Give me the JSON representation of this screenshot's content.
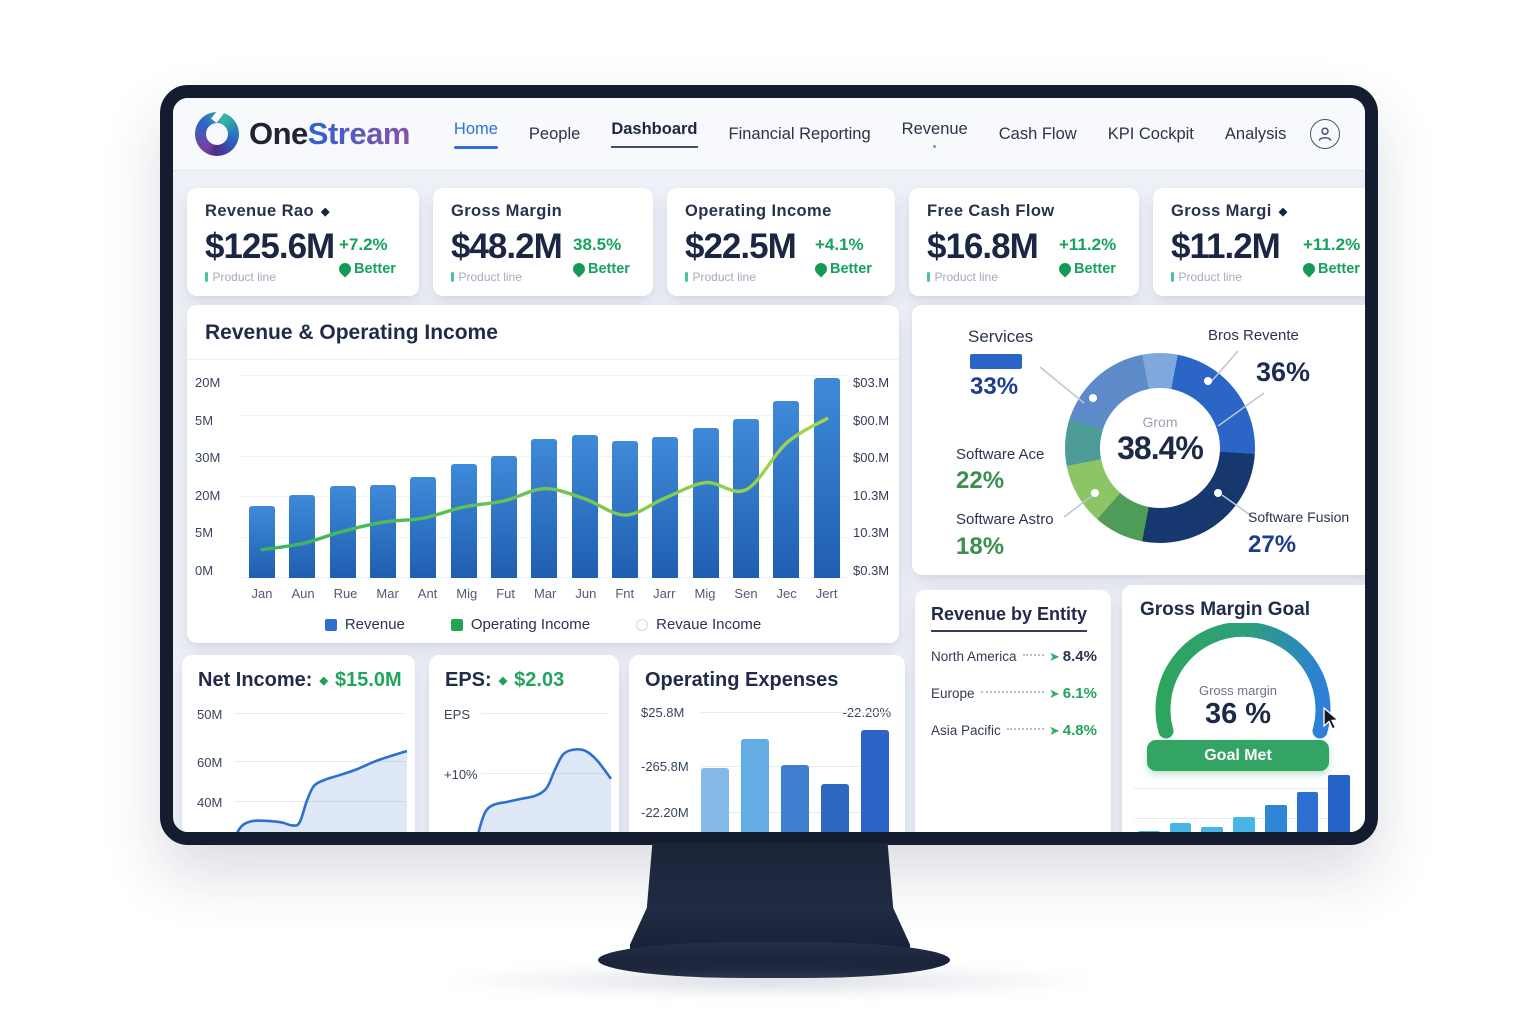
{
  "brand": {
    "part1": "One",
    "part2": "Stream"
  },
  "nav": {
    "items": [
      {
        "label": "Home",
        "style": "nav-home"
      },
      {
        "label": "People",
        "style": ""
      },
      {
        "label": "Dashboard",
        "style": "nav-dash"
      },
      {
        "label": "Financial Reporting",
        "style": ""
      },
      {
        "label": "Revenue",
        "style": "nav-dot"
      },
      {
        "label": "Cash Flow",
        "style": ""
      },
      {
        "label": "KPI Cockpit",
        "style": ""
      },
      {
        "label": "Analysis",
        "style": ""
      }
    ]
  },
  "kpi_cards": [
    {
      "title": "Revenue Rao",
      "has_diamond": true,
      "value": "$125.6M",
      "sub": "Product line",
      "delta": "+7.2%",
      "delta_note": "Better"
    },
    {
      "title": "Gross Margin",
      "has_diamond": false,
      "value": "$48.2M",
      "sub": "Product line",
      "delta": "38.5%",
      "delta_note": "Better"
    },
    {
      "title": "Operating Income",
      "has_diamond": false,
      "value": "$22.5M",
      "sub": "Product line",
      "delta": "+4.1%",
      "delta_note": "Better"
    },
    {
      "title": "Free Cash Flow",
      "has_diamond": false,
      "value": "$16.8M",
      "sub": "Product line",
      "delta": "+11.2%",
      "delta_note": "Better"
    },
    {
      "title": "Gross Margi",
      "has_diamond": true,
      "value": "$11.2M",
      "sub": "Product line",
      "delta": "+11.2%",
      "delta_note": "Better"
    }
  ],
  "chart_data": [
    {
      "type": "bar",
      "title": "Revenue & Operating Income",
      "categories": [
        "Jan",
        "Aun",
        "Rue",
        "Mar",
        "Ant",
        "Mig",
        "Fut",
        "Mar",
        "Jun",
        "Fnt",
        "Jarr",
        "Mig",
        "Sen",
        "Jec",
        "Jert"
      ],
      "series": [
        {
          "name": "Revenue",
          "type": "bar",
          "color": "#2e6fd0",
          "values": [
            7.1,
            8.2,
            9.1,
            9.2,
            10.0,
            11.2,
            12.0,
            13.7,
            14.1,
            13.5,
            13.9,
            14.8,
            15.7,
            17.4,
            19.7
          ]
        },
        {
          "name": "Operating Income",
          "type": "line",
          "color": "#3cb95c",
          "values": [
            2.8,
            3.4,
            4.6,
            5.5,
            5.9,
            7.0,
            7.6,
            8.8,
            7.8,
            6.2,
            7.9,
            9.4,
            8.7,
            13.3,
            15.7
          ]
        }
      ],
      "ylim": [
        0,
        20
      ],
      "yticks_left": [
        "20M",
        "5M",
        "30M",
        "20M",
        "5M",
        "0M"
      ],
      "yticks_right": [
        "$03.M",
        "$00.M",
        "$00.M",
        "10.3M",
        "10.3M",
        "$0.3M"
      ],
      "legend": [
        {
          "label": "Revenue",
          "marker": "square",
          "color": "#2e6fd0"
        },
        {
          "label": "Operating Income",
          "marker": "square",
          "color": "#21a453"
        },
        {
          "label": "Revaue Income",
          "marker": "circle",
          "color": "#c9d6ea"
        }
      ],
      "units": "M"
    },
    {
      "type": "pie",
      "center_label": "Grom",
      "center_value": "38.4%",
      "callouts": [
        {
          "name": "Services",
          "value": "33%"
        },
        {
          "name": "Bros Revente",
          "value": "36%"
        },
        {
          "name": "Software Ace",
          "value": "22%"
        },
        {
          "name": "Software Astro",
          "value": "18%"
        },
        {
          "name": "Software Fusion",
          "value": "27%"
        }
      ],
      "segments": [
        {
          "color": "#7fa9dc",
          "pct": 3
        },
        {
          "color": "#2b66c6",
          "pct": 23
        },
        {
          "color": "#17386f",
          "pct": 27
        },
        {
          "color": "#4f9b58",
          "pct": 8.5
        },
        {
          "color": "#8cc565",
          "pct": 10.5
        },
        {
          "color": "#4d9c98",
          "pct": 8
        },
        {
          "color": "#5d8bca",
          "pct": 17
        },
        {
          "color": "#7fa9dc",
          "pct": 3
        }
      ]
    },
    {
      "type": "area",
      "title": "Net Income:",
      "value": "$15.0M",
      "yticks": [
        "50M",
        "60M",
        "40M"
      ],
      "points": [
        [
          0,
          100
        ],
        [
          4,
          82
        ],
        [
          8,
          74
        ],
        [
          14,
          71
        ],
        [
          22,
          71
        ],
        [
          30,
          72
        ],
        [
          36,
          74
        ],
        [
          40,
          72
        ],
        [
          44,
          58
        ],
        [
          48,
          48
        ],
        [
          54,
          44
        ],
        [
          62,
          41
        ],
        [
          72,
          37
        ],
        [
          84,
          31
        ],
        [
          100,
          25
        ]
      ]
    },
    {
      "type": "area",
      "title": "EPS:",
      "value": "$2.03",
      "yticks": [
        "EPS",
        "+10%"
      ],
      "points": [
        [
          0,
          100
        ],
        [
          5,
          80
        ],
        [
          10,
          66
        ],
        [
          16,
          61
        ],
        [
          26,
          59
        ],
        [
          36,
          57
        ],
        [
          46,
          55
        ],
        [
          54,
          50
        ],
        [
          60,
          38
        ],
        [
          66,
          28
        ],
        [
          74,
          25
        ],
        [
          82,
          26
        ],
        [
          90,
          32
        ],
        [
          100,
          44
        ]
      ]
    },
    {
      "type": "bar",
      "title": "Operating Expenses",
      "yticks": [
        "$25.8M",
        "-265.8M",
        "-22.20M"
      ],
      "annotation": "-22.20%",
      "values": [
        68,
        92,
        70,
        54,
        100
      ],
      "colors": [
        "#85b9e6",
        "#63ace4",
        "#3f7fd0",
        "#2e68c0",
        "#2b63c6"
      ],
      "units": "relative"
    },
    {
      "type": "table",
      "title": "Revenue by Entity",
      "rows": [
        {
          "label": "North America",
          "value": "8.4%",
          "color": "#2b3550"
        },
        {
          "label": "Europe",
          "value": "6.1%",
          "color": "#21a45d"
        },
        {
          "label": "Asia Pacific",
          "value": "4.8%",
          "color": "#21a45d"
        }
      ]
    },
    {
      "type": "gauge",
      "title": "Gross Margin Goal",
      "label": "Gross margin",
      "value": "36 %",
      "status": "Goal Met",
      "gauge_colors": [
        "#2ea55e",
        "#2d7fd8"
      ],
      "trend": {
        "values": [
          16,
          24,
          20,
          30,
          42,
          55,
          72
        ],
        "colors": [
          "#49b5e6",
          "#49b5e6",
          "#49b5e6",
          "#49b5e6",
          "#2f86d6",
          "#2d6fd0",
          "#2563c8"
        ]
      }
    }
  ]
}
